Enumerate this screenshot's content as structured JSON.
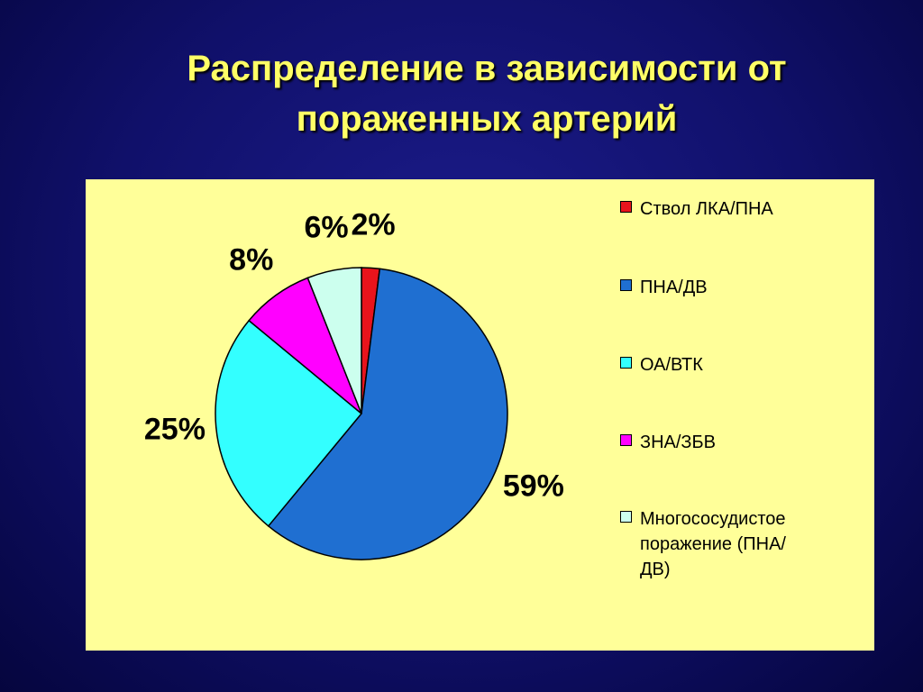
{
  "chart_data": {
    "type": "pie",
    "title": "Распределение в зависимости от пораженных артерий",
    "categories": [
      "Ствол ЛКА/ПНА",
      "ПНА/ДВ",
      "ОА/ВТК",
      "ЗНА/ЗБВ",
      "Многососудистое поражение (ПНА/ДВ)"
    ],
    "values": [
      2,
      59,
      25,
      8,
      6
    ],
    "value_labels": [
      "2%",
      "59%",
      "25%",
      "8%",
      "6%"
    ],
    "colors": [
      "#e8141c",
      "#1f6fd1",
      "#33ffff",
      "#ff00ff",
      "#ccffee"
    ],
    "legend": "right"
  }
}
